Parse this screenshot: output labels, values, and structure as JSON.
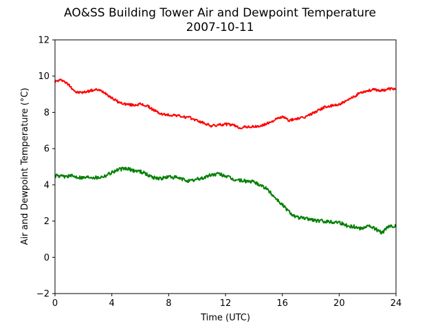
{
  "chart_data": {
    "type": "line",
    "title": "AO&SS Building Tower Air and Dewpoint Temperature",
    "subtitle": "2007-10-11",
    "xlabel": "Time (UTC)",
    "ylabel": "Air and Dewpoint Temperature (°C)",
    "xlim": [
      0,
      24
    ],
    "ylim": [
      -2,
      12
    ],
    "xticks": [
      0,
      4,
      8,
      12,
      16,
      20,
      24
    ],
    "yticks": [
      -2,
      0,
      2,
      4,
      6,
      8,
      10,
      12
    ],
    "grid": false,
    "legend": "none",
    "series": [
      {
        "color": "#ff0000",
        "x": [
          0,
          0.5,
          1,
          1.5,
          2,
          2.5,
          3,
          3.5,
          4,
          4.5,
          5,
          5.5,
          6,
          6.5,
          7,
          7.5,
          8,
          8.5,
          9,
          9.5,
          10,
          10.5,
          11,
          11.5,
          12,
          12.5,
          13,
          13.5,
          14,
          14.5,
          15,
          15.5,
          16,
          16.5,
          17,
          17.5,
          18,
          18.5,
          19,
          19.5,
          20,
          20.5,
          21,
          21.5,
          22,
          22.5,
          23,
          23.5,
          24
        ],
        "values": [
          9.7,
          9.8,
          9.5,
          9.1,
          9.1,
          9.2,
          9.25,
          9.1,
          8.8,
          8.55,
          8.45,
          8.4,
          8.45,
          8.35,
          8.1,
          7.9,
          7.85,
          7.85,
          7.75,
          7.7,
          7.55,
          7.4,
          7.25,
          7.3,
          7.35,
          7.3,
          7.15,
          7.2,
          7.2,
          7.25,
          7.4,
          7.6,
          7.75,
          7.55,
          7.65,
          7.7,
          7.9,
          8.1,
          8.3,
          8.35,
          8.45,
          8.6,
          8.85,
          9.1,
          9.2,
          9.25,
          9.2,
          9.3,
          9.3
        ]
      },
      {
        "color": "#008000",
        "x": [
          0,
          0.5,
          1,
          1.5,
          2,
          2.5,
          3,
          3.5,
          4,
          4.5,
          5,
          5.5,
          6,
          6.5,
          7,
          7.5,
          8,
          8.5,
          9,
          9.5,
          10,
          10.5,
          11,
          11.5,
          12,
          12.5,
          13,
          13.5,
          14,
          14.5,
          15,
          15.5,
          16,
          16.5,
          17,
          17.5,
          18,
          18.5,
          19,
          19.5,
          20,
          20.5,
          21,
          21.5,
          22,
          22.5,
          23,
          23.5,
          24
        ],
        "values": [
          4.5,
          4.45,
          4.5,
          4.45,
          4.4,
          4.45,
          4.4,
          4.5,
          4.7,
          4.85,
          4.9,
          4.8,
          4.75,
          4.55,
          4.4,
          4.35,
          4.45,
          4.4,
          4.3,
          4.2,
          4.3,
          4.4,
          4.55,
          4.6,
          4.5,
          4.3,
          4.25,
          4.2,
          4.15,
          4.0,
          3.7,
          3.3,
          2.9,
          2.5,
          2.2,
          2.15,
          2.1,
          2.0,
          2.0,
          1.95,
          1.95,
          1.75,
          1.7,
          1.6,
          1.75,
          1.6,
          1.35,
          1.7,
          1.7
        ]
      }
    ]
  }
}
